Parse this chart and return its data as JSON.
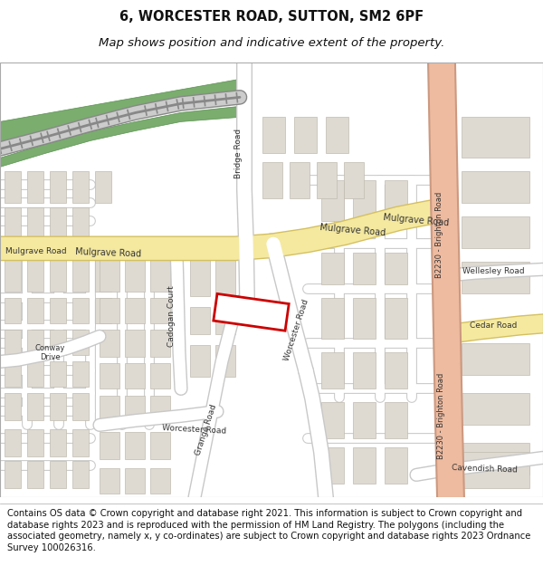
{
  "title_line1": "6, WORCESTER ROAD, SUTTON, SM2 6PF",
  "title_line2": "Map shows position and indicative extent of the property.",
  "title_fontsize": 10.5,
  "subtitle_fontsize": 9.5,
  "footer_text": "Contains OS data © Crown copyright and database right 2021. This information is subject to Crown copyright and database rights 2023 and is reproduced with the permission of HM Land Registry. The polygons (including the associated geometry, namely x, y co-ordinates) are subject to Crown copyright and database rights 2023 Ordnance Survey 100026316.",
  "footer_fontsize": 7.2,
  "map_bg": "#f2ede8",
  "road_main_color": "#f5e9a0",
  "road_main_outline": "#d4c060",
  "road_minor_color": "#ffffff",
  "road_minor_outline": "#c8c8c8",
  "building_color": "#dedad2",
  "building_outline": "#c0bbb0",
  "railway_line": "#888888",
  "green_color": "#7aad6e",
  "brighton_road_color": "#eebba0",
  "brighton_road_outline": "#cc9980",
  "plot_rect_color": "#cc0000",
  "text_color": "#333333"
}
